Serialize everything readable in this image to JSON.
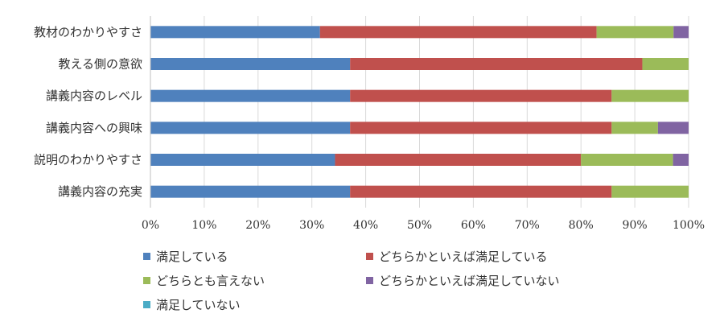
{
  "chart_data": {
    "type": "bar",
    "orientation": "horizontal",
    "stacked": "percent",
    "categories": [
      "教材のわかりやすさ",
      "教える側の意欲",
      "講義内容のレベル",
      "講義内容への興味",
      "説明のわかりやすさ",
      "講義内容の充実"
    ],
    "series": [
      {
        "name": "満足している",
        "color": "#4F81BD",
        "values": [
          31.5,
          37.1,
          37.1,
          37.1,
          34.3,
          37.1
        ]
      },
      {
        "name": "どちらかといえば満足している",
        "color": "#C0504D",
        "values": [
          51.4,
          54.3,
          48.6,
          48.6,
          45.7,
          48.6
        ]
      },
      {
        "name": "どちらとも言えない",
        "color": "#9BBB59",
        "values": [
          14.3,
          8.6,
          14.3,
          8.6,
          17.1,
          14.3
        ]
      },
      {
        "name": "どちらかといえば満足していない",
        "color": "#8064A2",
        "values": [
          2.8,
          0,
          0,
          5.7,
          2.9,
          0
        ]
      },
      {
        "name": "満足していない",
        "color": "#4BACC6",
        "values": [
          0,
          0,
          0,
          0,
          0,
          0
        ]
      }
    ],
    "xticks": [
      "0%",
      "10%",
      "20%",
      "30%",
      "40%",
      "50%",
      "60%",
      "70%",
      "80%",
      "90%",
      "100%"
    ],
    "xlim": [
      0,
      100
    ],
    "grid": true,
    "legend_position": "bottom"
  }
}
